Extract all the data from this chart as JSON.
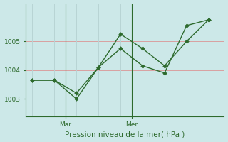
{
  "line1_x": [
    0,
    1,
    2,
    3,
    4,
    5,
    6,
    7,
    8
  ],
  "line1_y": [
    1003.65,
    1003.65,
    1003.0,
    1004.1,
    1005.25,
    1004.75,
    1004.15,
    1005.0,
    1005.75
  ],
  "line2_x": [
    0,
    1,
    2,
    3,
    4,
    5,
    6,
    7,
    8
  ],
  "line2_y": [
    1003.65,
    1003.65,
    1003.2,
    1004.1,
    1004.75,
    1004.15,
    1003.9,
    1005.55,
    1005.75
  ],
  "xtick_positions": [
    1.5,
    4.5
  ],
  "xtick_labels": [
    "Mar",
    "Mer"
  ],
  "ytick_positions": [
    1003,
    1004,
    1005
  ],
  "ytick_labels": [
    "1003",
    "1004",
    "1005"
  ],
  "ylim": [
    1002.4,
    1006.3
  ],
  "xlim": [
    -0.3,
    8.7
  ],
  "xlabel": "Pression niveau de la mer( hPa )",
  "line_color": "#2d6a2d",
  "bg_color": "#cce8e8",
  "grid_color_h": "#d9a0a0",
  "grid_color_v": "#b8d4d4",
  "vline_color": "#2d6a2d",
  "marker": "D",
  "markersize": 2.8,
  "linewidth": 1.0
}
